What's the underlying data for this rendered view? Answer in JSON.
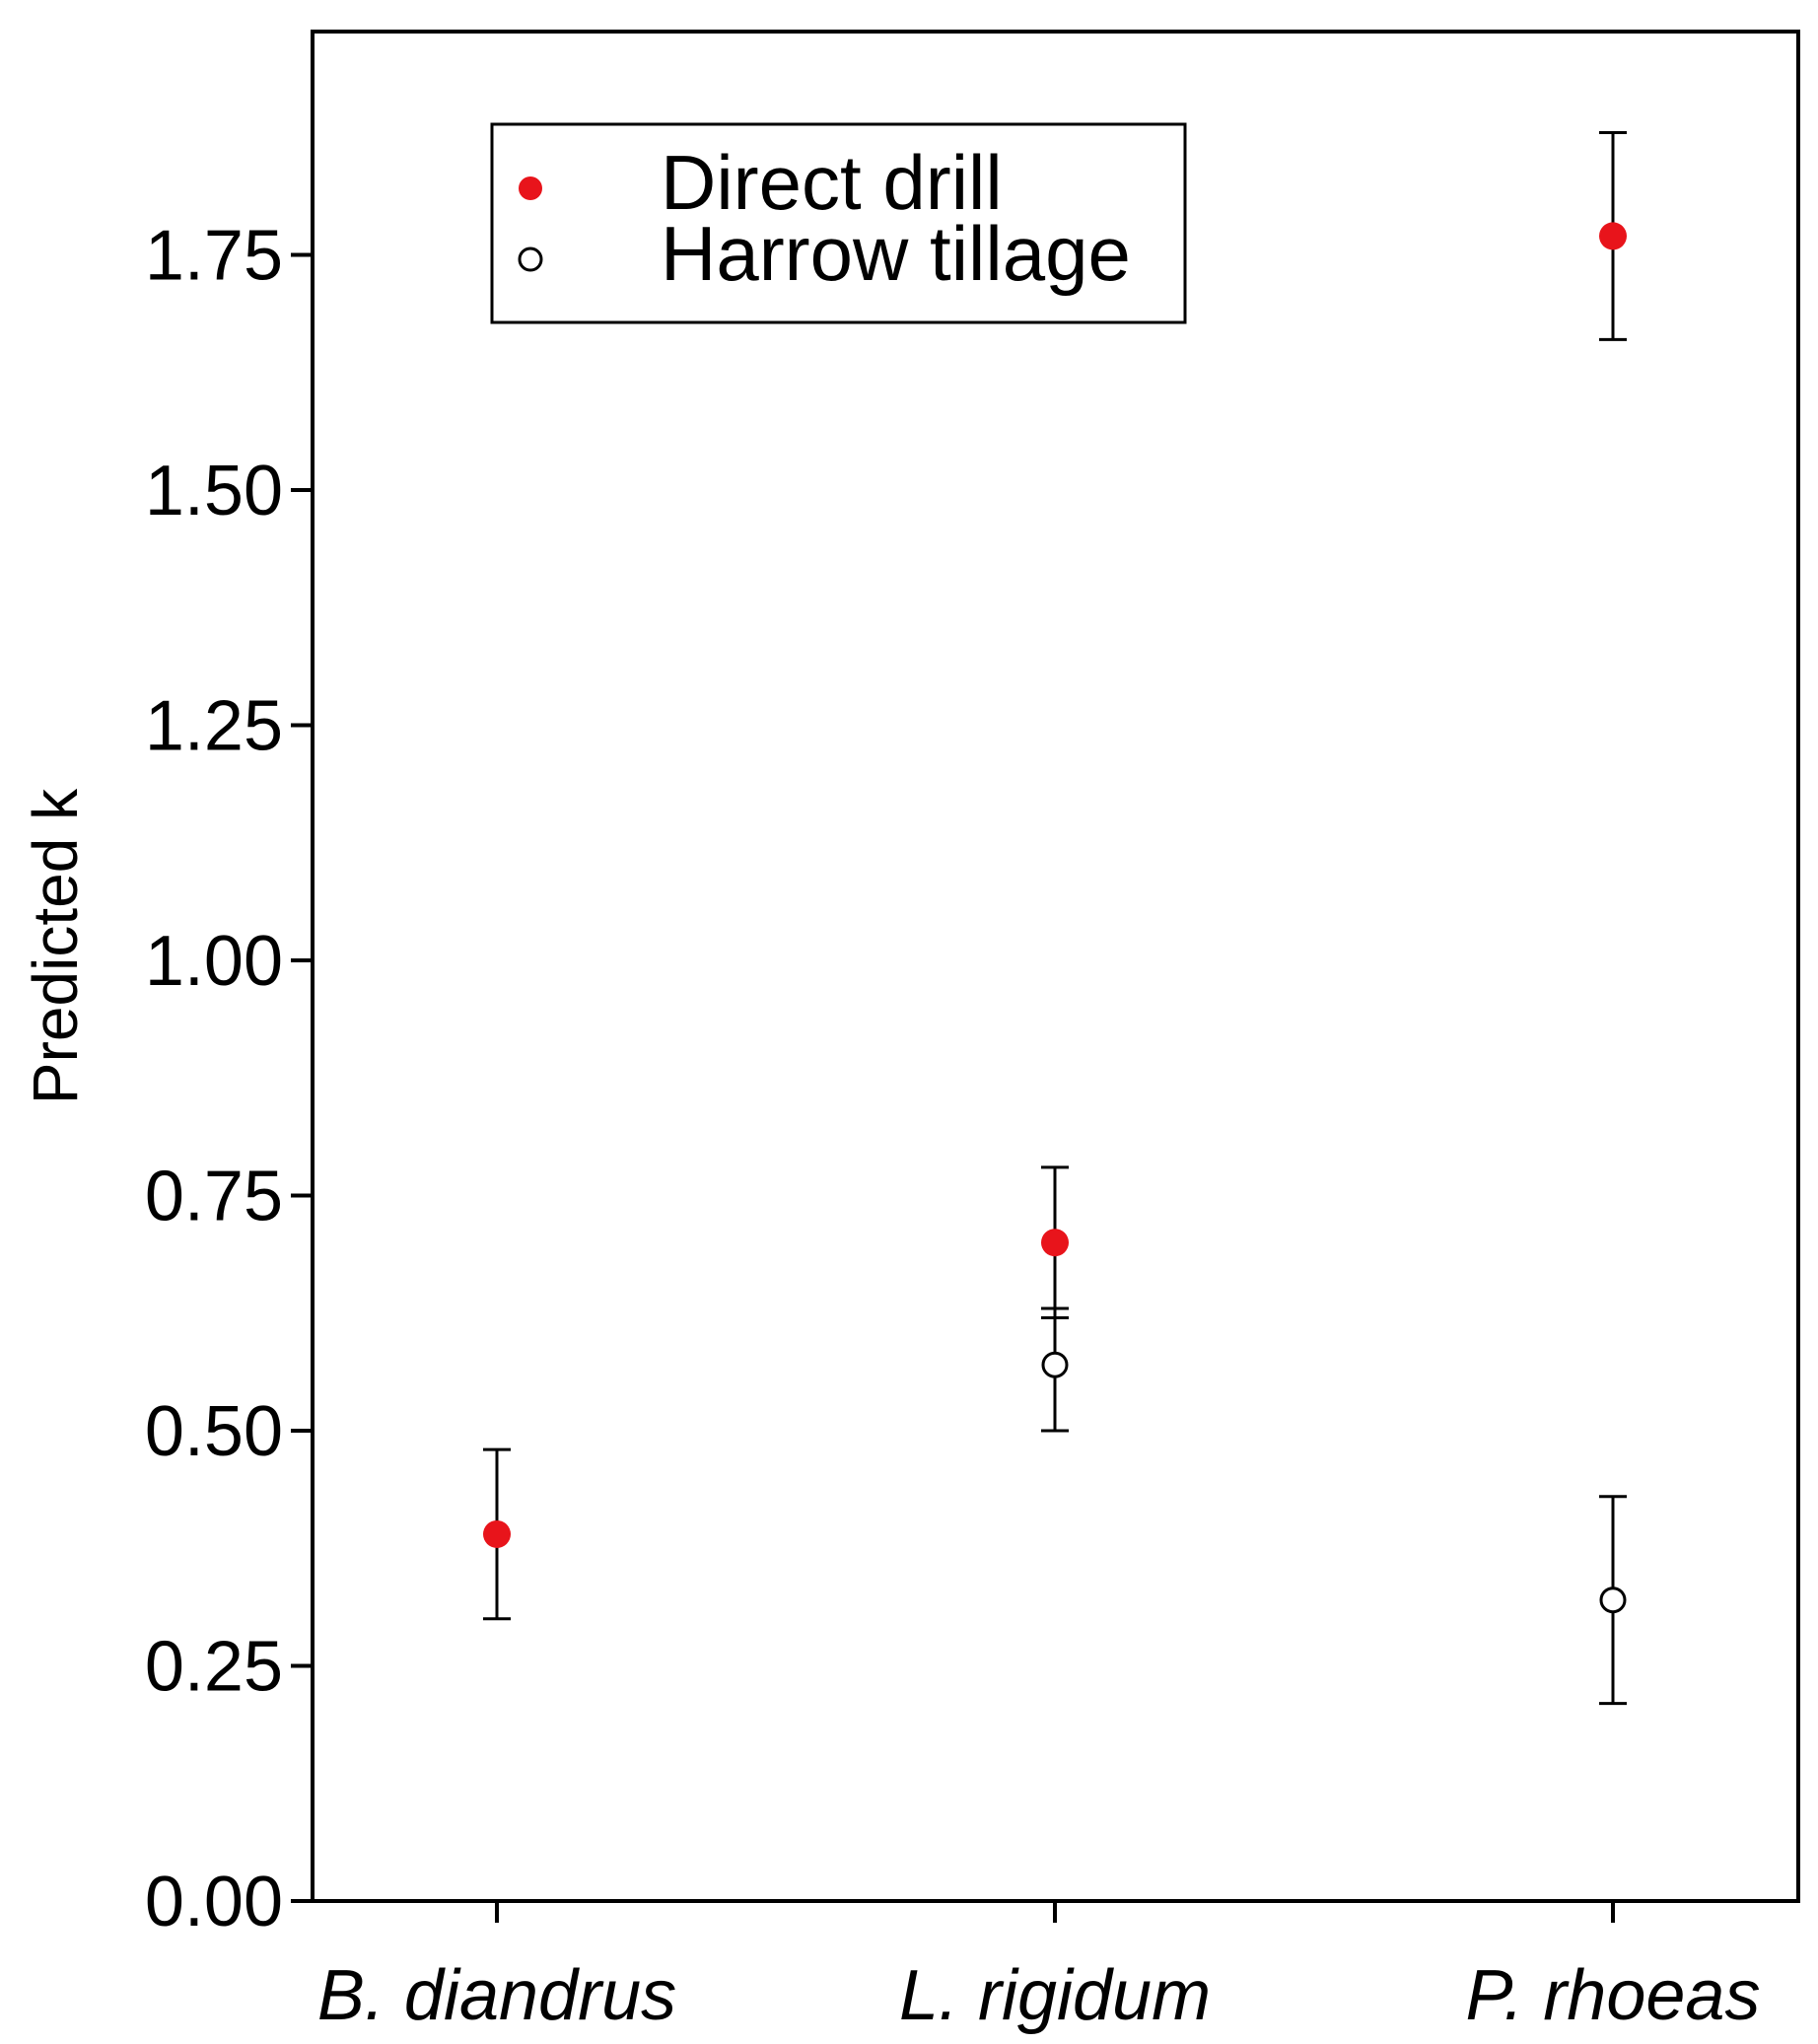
{
  "chart_data": {
    "type": "scatter",
    "title": "",
    "xlabel": "",
    "ylabel": "Predicted k",
    "categories": [
      "B. diandrus",
      "L. rigidum",
      "P. rhoeas"
    ],
    "ylim": [
      0,
      1.98
    ],
    "yticks": [
      "0.00",
      "0.25",
      "0.50",
      "0.75",
      "1.00",
      "1.25",
      "1.50",
      "1.75"
    ],
    "grid": false,
    "legend_position": "top-left",
    "series": [
      {
        "name": "Direct drill",
        "marker": "filled-circle",
        "color": "#e8141b",
        "points": [
          {
            "category": "B. diandrus",
            "value": 0.39,
            "err_low": 0.3,
            "err_high": 0.48
          },
          {
            "category": "L. rigidum",
            "value": 0.7,
            "err_low": 0.62,
            "err_high": 0.78
          },
          {
            "category": "P. rhoeas",
            "value": 1.77,
            "err_low": 1.66,
            "err_high": 1.88
          }
        ]
      },
      {
        "name": "Harrow tillage",
        "marker": "open-circle",
        "color": "#000000",
        "points": [
          {
            "category": "L. rigidum",
            "value": 0.57,
            "err_low": 0.5,
            "err_high": 0.63
          },
          {
            "category": "P. rhoeas",
            "value": 0.32,
            "err_low": 0.21,
            "err_high": 0.43
          }
        ]
      }
    ]
  }
}
